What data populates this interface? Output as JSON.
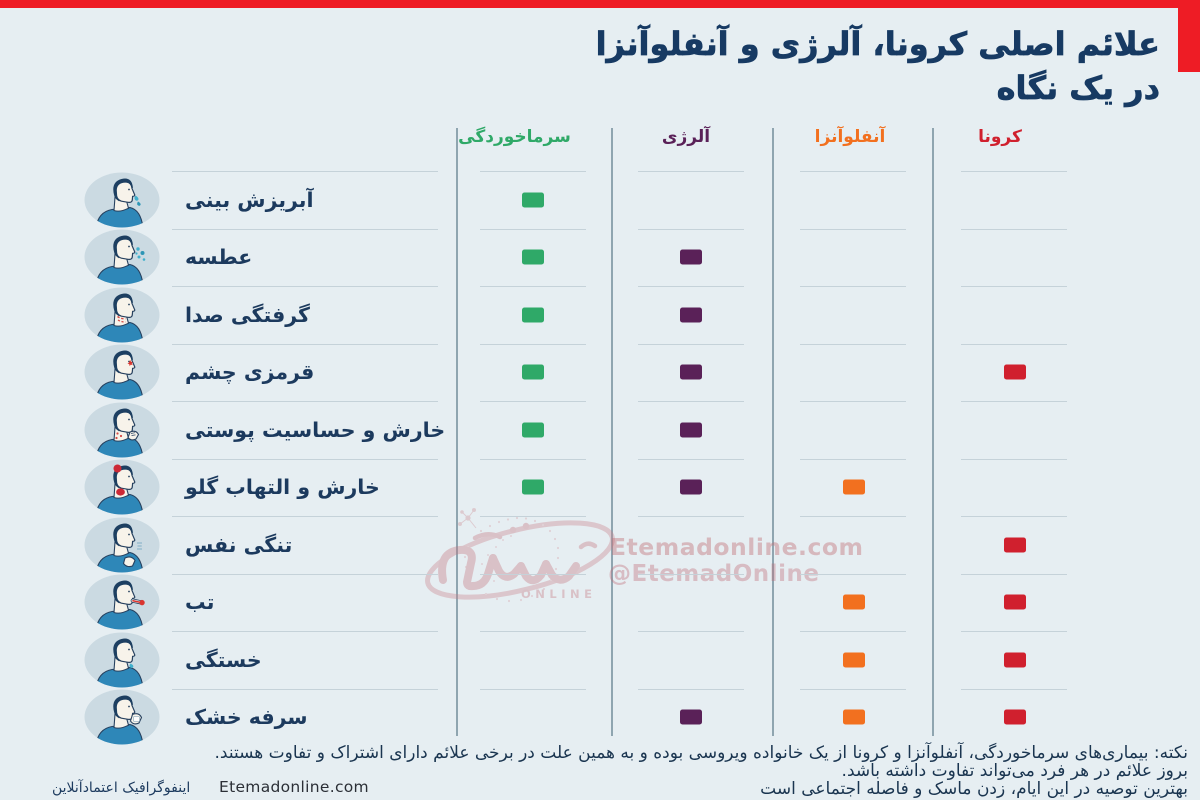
{
  "title": {
    "line1": "علائم اصلی کرونا،  آلرژی و آنفلوآنزا",
    "line2": "در یک نگاه"
  },
  "columns": [
    {
      "key": "cold",
      "label": "سرماخوردگی",
      "color": "#2fa968"
    },
    {
      "key": "allergy",
      "label": "آلرژی",
      "color": "#5a2158"
    },
    {
      "key": "flu",
      "label": "آنفلوآنزا",
      "color": "#f2701f"
    },
    {
      "key": "corona",
      "label": "کرونا",
      "color": "#d0202e"
    }
  ],
  "rows": [
    {
      "label": "آبریزش بینی",
      "icon": "runny-nose-icon",
      "marks": {
        "cold": true,
        "allergy": false,
        "flu": false,
        "corona": false
      }
    },
    {
      "label": "عطسه",
      "icon": "sneeze-icon",
      "marks": {
        "cold": true,
        "allergy": true,
        "flu": false,
        "corona": false
      }
    },
    {
      "label": "گرفتگی صدا",
      "icon": "hoarse-voice-icon",
      "marks": {
        "cold": true,
        "allergy": true,
        "flu": false,
        "corona": false
      }
    },
    {
      "label": "قرمزی چشم",
      "icon": "red-eye-icon",
      "marks": {
        "cold": true,
        "allergy": true,
        "flu": false,
        "corona": true
      }
    },
    {
      "label": "خارش و حساسیت پوستی",
      "icon": "skin-itch-icon",
      "marks": {
        "cold": true,
        "allergy": true,
        "flu": false,
        "corona": false
      }
    },
    {
      "label": "خارش و التهاب گلو",
      "icon": "sore-throat-icon",
      "marks": {
        "cold": true,
        "allergy": true,
        "flu": true,
        "corona": false
      }
    },
    {
      "label": "تنگی نفس",
      "icon": "short-breath-icon",
      "marks": {
        "cold": false,
        "allergy": false,
        "flu": false,
        "corona": true
      }
    },
    {
      "label": "تب",
      "icon": "fever-icon",
      "marks": {
        "cold": false,
        "allergy": false,
        "flu": true,
        "corona": true
      }
    },
    {
      "label": "خستگی",
      "icon": "fatigue-icon",
      "marks": {
        "cold": false,
        "allergy": false,
        "flu": true,
        "corona": true
      }
    },
    {
      "label": "سرفه خشک",
      "icon": "dry-cough-icon",
      "marks": {
        "cold": false,
        "allergy": true,
        "flu": true,
        "corona": true
      }
    }
  ],
  "chart_data": {
    "type": "table",
    "title": "علائم اصلی کرونا،  آلرژی و آنفلوآنزا در یک نگاه",
    "columns": [
      "سرماخوردگی",
      "آلرژی",
      "آنفلوآنزا",
      "کرونا"
    ],
    "rows": [
      "آبریزش بینی",
      "عطسه",
      "گرفتگی صدا",
      "قرمزی چشم",
      "خارش و حساسیت پوستی",
      "خارش و التهاب گلو",
      "تنگی نفس",
      "تب",
      "خستگی",
      "سرفه خشک"
    ],
    "matrix": [
      [
        1,
        0,
        0,
        0
      ],
      [
        1,
        1,
        0,
        0
      ],
      [
        1,
        1,
        0,
        0
      ],
      [
        1,
        1,
        0,
        1
      ],
      [
        1,
        1,
        0,
        0
      ],
      [
        1,
        1,
        1,
        0
      ],
      [
        0,
        0,
        0,
        1
      ],
      [
        0,
        0,
        1,
        1
      ],
      [
        0,
        0,
        1,
        1
      ],
      [
        0,
        1,
        1,
        1
      ]
    ]
  },
  "watermark": {
    "site": "Etemadonline.com",
    "handle": "@EtemadOnline",
    "logo_text": "ONLINE"
  },
  "notes": [
    "نکته: بیماری‌های سرماخوردگی، آنفلوآنزا و کرونا از یک خانواده ویروسی بوده و به همین علت در برخی علائم دارای اشتراک و تفاوت هستند.",
    "بروز علائم در هر فرد می‌تواند تفاوت داشته باشد.",
    "بهترین توصیه در این ایام، زدن ماسک و فاصله اجتماعی است"
  ],
  "footer": {
    "site": "Etemadonline.com",
    "credit": "اینفوگرافیک اعتمادآنلاین"
  },
  "colors": {
    "background": "#e6eef2",
    "banner_red": "#ee1c25",
    "title_navy": "#173a63",
    "cold_green": "#2eb069",
    "allergy_purple": "#5a2157",
    "flu_orange": "#f4701f",
    "corona_red": "#d01c2a",
    "label_navy": "#1c3a5e",
    "watermark_pink": "#c16d75"
  }
}
